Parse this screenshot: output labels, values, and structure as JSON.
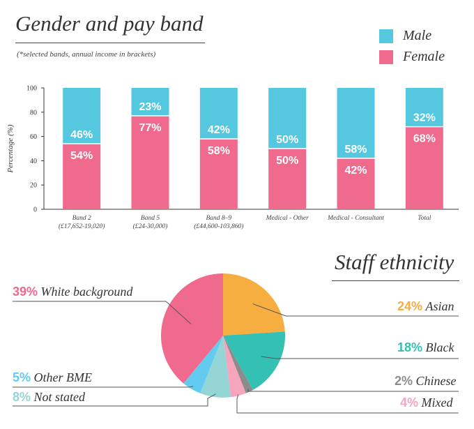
{
  "gender": {
    "title": "Gender and pay band",
    "subtitle": "(*selected bands, annual income in brackets)",
    "legend": [
      {
        "name": "Male",
        "color": "#55c8e0"
      },
      {
        "name": "Female",
        "color": "#f06a8e"
      }
    ]
  },
  "ethnicity": {
    "title": "Staff ethnicity"
  },
  "chart_data": [
    {
      "type": "bar",
      "stacked": true,
      "title": "Gender and pay band",
      "ylabel": "Percentage (%)",
      "ylim": [
        0,
        100
      ],
      "yticks": [
        "0",
        "20",
        "40",
        "60",
        "80",
        "100"
      ],
      "categories": [
        [
          "Band 2",
          "(£17,652-19,020)"
        ],
        [
          "Band 5",
          "(£24-30,000)"
        ],
        [
          "Band 8–9",
          "(£44,600-103,860)"
        ],
        [
          "Medical - Other"
        ],
        [
          "Medical - Consultant"
        ],
        [
          "Total"
        ]
      ],
      "series": [
        {
          "name": "Female",
          "color": "#f06a8e",
          "values": [
            54,
            77,
            58,
            50,
            42,
            68
          ],
          "labels": [
            "54%",
            "77%",
            "58%",
            "50%",
            "42%",
            "68%"
          ]
        },
        {
          "name": "Male",
          "color": "#55c8e0",
          "values": [
            46,
            23,
            42,
            50,
            58,
            32
          ],
          "labels": [
            "46%",
            "23%",
            "42%",
            "50%",
            "58%",
            "32%"
          ]
        }
      ],
      "legend_position": "top-right",
      "grid": false
    },
    {
      "type": "pie",
      "title": "Staff ethnicity",
      "slices": [
        {
          "name": "Asian",
          "value": 24,
          "label": "24%",
          "color": "#f6ae40"
        },
        {
          "name": "Black",
          "value": 18,
          "label": "18%",
          "color": "#35c0b4"
        },
        {
          "name": "Chinese",
          "value": 2,
          "label": "2%",
          "color": "#8c8c8c"
        },
        {
          "name": "Mixed",
          "value": 4,
          "label": "4%",
          "color": "#f7a4bd"
        },
        {
          "name": "Not stated",
          "value": 8,
          "label": "8%",
          "color": "#94d6d5"
        },
        {
          "name": "Other BME",
          "value": 5,
          "label": "5%",
          "color": "#63cbf0"
        },
        {
          "name": "White background",
          "value": 39,
          "label": "39%",
          "color": "#f06a8e"
        }
      ]
    }
  ]
}
